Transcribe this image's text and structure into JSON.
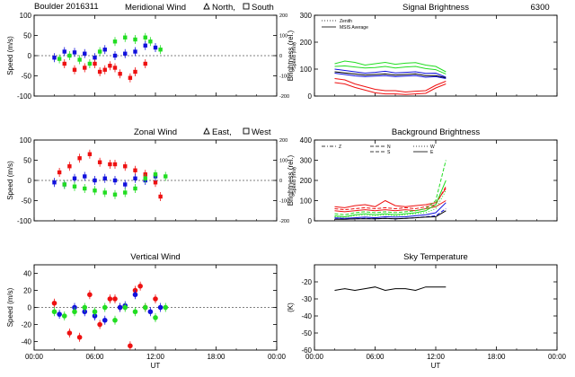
{
  "page": {
    "title": "Boulder  2016311",
    "colors": {
      "red": "#ee1111",
      "green": "#22dd22",
      "blue": "#1111dd",
      "black": "#000000"
    }
  },
  "chart_data": [
    {
      "id": "meridional",
      "type": "scatter",
      "title": "Meridional Wind",
      "title_markers": [
        "North,",
        "South"
      ],
      "ylabel": "Speed (m/s)",
      "y2label": "Speed (m/s)",
      "xlim": [
        0,
        24
      ],
      "ylim": [
        -100,
        100
      ],
      "y2lim": [
        -200,
        200
      ],
      "xticks": [
        0,
        6,
        12,
        18,
        24
      ],
      "xtick_labels": [
        "",
        "",
        "",
        "",
        ""
      ],
      "yticks": [
        100,
        50,
        0,
        -50,
        -100
      ],
      "y2ticks": [
        200,
        100,
        0,
        -100,
        -200
      ],
      "series": [
        {
          "color": "green",
          "marker": "square",
          "x": [
            2.5,
            3.5,
            4.5,
            5.5,
            6.5,
            8.0,
            9.0,
            10.0,
            11.0,
            11.5,
            12.5
          ],
          "y": [
            -8,
            0,
            -10,
            -20,
            10,
            35,
            45,
            40,
            45,
            35,
            15
          ]
        },
        {
          "color": "blue",
          "marker": "square",
          "x": [
            2.0,
            3.0,
            4.0,
            5.0,
            6.0,
            7.0,
            8.0,
            9.0,
            10.0,
            11.0,
            12.0
          ],
          "y": [
            -5,
            10,
            8,
            5,
            -5,
            15,
            0,
            5,
            10,
            25,
            20
          ]
        },
        {
          "color": "red",
          "marker": "square",
          "x": [
            3.0,
            4.0,
            5.0,
            6.0,
            6.5,
            7.0,
            7.5,
            8.0,
            8.5,
            9.5,
            10.0,
            11.0
          ],
          "y": [
            -20,
            -35,
            -30,
            -20,
            -40,
            -35,
            -25,
            -30,
            -45,
            -55,
            -40,
            -20
          ]
        }
      ]
    },
    {
      "id": "signal",
      "type": "line",
      "title": "Signal Brightness",
      "title_right": "6300",
      "ylabel": "Brightness (rel.)",
      "xlim": [
        0,
        24
      ],
      "ylim": [
        0,
        300
      ],
      "xticks": [
        0,
        6,
        12,
        18,
        24
      ],
      "xtick_labels": [
        "",
        "",
        "",
        "",
        ""
      ],
      "yticks": [
        300,
        200,
        100,
        0
      ],
      "legend": [
        {
          "label": "Zenith",
          "style": "dotted"
        },
        {
          "label": "MSIS Average",
          "style": "solid"
        }
      ],
      "series": [
        {
          "color": "green",
          "style": "solid",
          "x": [
            2,
            3,
            4,
            5,
            6,
            7,
            8,
            9,
            10,
            11,
            12,
            13
          ],
          "y": [
            120,
            130,
            125,
            115,
            120,
            125,
            118,
            122,
            124,
            115,
            110,
            90
          ]
        },
        {
          "color": "green",
          "style": "solid",
          "x": [
            2,
            3,
            4,
            5,
            6,
            7,
            8,
            9,
            10,
            11,
            12,
            13
          ],
          "y": [
            110,
            112,
            108,
            104,
            106,
            110,
            104,
            108,
            110,
            102,
            98,
            82
          ]
        },
        {
          "color": "blue",
          "style": "solid",
          "x": [
            2,
            3,
            4,
            5,
            6,
            7,
            8,
            9,
            10,
            11,
            12,
            13
          ],
          "y": [
            100,
            95,
            90,
            85,
            88,
            92,
            86,
            88,
            90,
            84,
            85,
            70
          ]
        },
        {
          "color": "black",
          "style": "solid",
          "x": [
            2,
            3,
            4,
            5,
            6,
            7,
            8,
            9,
            10,
            11,
            12,
            13
          ],
          "y": [
            90,
            86,
            82,
            78,
            80,
            82,
            78,
            80,
            82,
            76,
            76,
            68
          ]
        },
        {
          "color": "blue",
          "style": "solid",
          "x": [
            2,
            3,
            4,
            5,
            6,
            7,
            8,
            9,
            10,
            11,
            12,
            13
          ],
          "y": [
            85,
            80,
            75,
            72,
            74,
            76,
            72,
            74,
            76,
            70,
            72,
            65
          ]
        },
        {
          "color": "red",
          "style": "solid",
          "x": [
            2,
            3,
            4,
            5,
            6,
            7,
            8,
            9,
            10,
            11,
            12,
            13
          ],
          "y": [
            65,
            60,
            45,
            35,
            25,
            20,
            20,
            15,
            18,
            20,
            40,
            55
          ]
        },
        {
          "color": "red",
          "style": "solid",
          "x": [
            2,
            3,
            4,
            5,
            6,
            7,
            8,
            9,
            10,
            11,
            12,
            13
          ],
          "y": [
            50,
            45,
            32,
            22,
            12,
            8,
            8,
            6,
            8,
            10,
            30,
            45
          ]
        }
      ]
    },
    {
      "id": "zonal",
      "type": "scatter",
      "title": "Zonal Wind",
      "title_markers": [
        "East,",
        "West"
      ],
      "ylabel": "Speed (m/s)",
      "y2label": "Speed (m/s)",
      "xlim": [
        0,
        24
      ],
      "ylim": [
        -100,
        100
      ],
      "y2lim": [
        -200,
        200
      ],
      "xticks": [
        0,
        6,
        12,
        18,
        24
      ],
      "xtick_labels": [
        "",
        "",
        "",
        "",
        ""
      ],
      "yticks": [
        100,
        50,
        0,
        -50,
        -100
      ],
      "y2ticks": [
        200,
        100,
        0,
        -100,
        -200
      ],
      "series": [
        {
          "color": "red",
          "marker": "square",
          "x": [
            2.5,
            3.5,
            4.5,
            5.5,
            6.5,
            7.5,
            8.0,
            9.0,
            10.0,
            11.0,
            12.0
          ],
          "y": [
            20,
            35,
            55,
            65,
            45,
            40,
            40,
            35,
            25,
            15,
            -5
          ]
        },
        {
          "color": "red",
          "marker": "square",
          "x": [
            12.5
          ],
          "y": [
            -40
          ]
        },
        {
          "color": "blue",
          "marker": "square",
          "x": [
            2.0,
            3.0,
            4.0,
            5.0,
            6.0,
            7.0,
            8.0,
            9.0,
            10.0,
            11.0,
            12.0
          ],
          "y": [
            -5,
            -10,
            5,
            10,
            0,
            5,
            0,
            -10,
            5,
            0,
            10
          ]
        },
        {
          "color": "green",
          "marker": "square",
          "x": [
            3.0,
            4.0,
            5.0,
            6.0,
            7.0,
            8.0,
            9.0,
            10.0,
            11.0,
            12.0,
            13.0
          ],
          "y": [
            -10,
            -15,
            -20,
            -25,
            -30,
            -35,
            -30,
            -20,
            5,
            15,
            10
          ]
        }
      ]
    },
    {
      "id": "background",
      "type": "line",
      "title": "Background Brightness",
      "ylabel": "Brightness (rel.)",
      "xlim": [
        0,
        24
      ],
      "ylim": [
        0,
        400
      ],
      "xticks": [
        0,
        6,
        12,
        18,
        24
      ],
      "xtick_labels": [
        "",
        "",
        "",
        "",
        ""
      ],
      "yticks": [
        400,
        300,
        200,
        100,
        0
      ],
      "legend": [
        {
          "label": "Z",
          "style": "dashdot"
        },
        {
          "label": "N",
          "style": "dashed"
        },
        {
          "label": "S",
          "style": "dashed"
        },
        {
          "label": "W",
          "style": "dotted"
        },
        {
          "label": "E",
          "style": "solid"
        }
      ],
      "series": [
        {
          "color": "red",
          "style": "solid",
          "x": [
            2,
            3,
            4,
            5,
            6,
            7,
            8,
            9,
            10,
            11,
            12,
            13
          ],
          "y": [
            70,
            65,
            75,
            80,
            70,
            100,
            75,
            70,
            75,
            80,
            90,
            160
          ]
        },
        {
          "color": "red",
          "style": "dashed",
          "x": [
            2,
            3,
            4,
            5,
            6,
            7,
            8,
            9,
            10,
            11,
            12,
            13
          ],
          "y": [
            60,
            55,
            60,
            65,
            60,
            65,
            60,
            65,
            60,
            70,
            80,
            170
          ]
        },
        {
          "color": "red",
          "style": "solid",
          "x": [
            2,
            3,
            4,
            5,
            6,
            7,
            8,
            9,
            10,
            11,
            12,
            13
          ],
          "y": [
            50,
            45,
            50,
            55,
            50,
            55,
            50,
            55,
            50,
            60,
            70,
            100
          ]
        },
        {
          "color": "green",
          "style": "dashed",
          "x": [
            2,
            3,
            4,
            5,
            6,
            7,
            8,
            9,
            10,
            11,
            12,
            13
          ],
          "y": [
            35,
            30,
            40,
            45,
            40,
            45,
            40,
            45,
            50,
            60,
            100,
            300
          ]
        },
        {
          "color": "green",
          "style": "solid",
          "x": [
            2,
            3,
            4,
            5,
            6,
            7,
            8,
            9,
            10,
            11,
            12,
            13
          ],
          "y": [
            25,
            20,
            30,
            35,
            30,
            35,
            30,
            35,
            40,
            50,
            80,
            200
          ]
        },
        {
          "color": "green",
          "style": "dotted",
          "x": [
            2,
            3,
            4,
            5,
            6,
            7,
            8,
            9,
            10,
            11,
            12,
            13
          ],
          "y": [
            20,
            18,
            25,
            28,
            25,
            30,
            25,
            30,
            35,
            40,
            60,
            150
          ]
        },
        {
          "color": "blue",
          "style": "solid",
          "x": [
            2,
            3,
            4,
            5,
            6,
            7,
            8,
            9,
            10,
            11,
            12,
            13
          ],
          "y": [
            15,
            12,
            15,
            18,
            15,
            20,
            18,
            20,
            25,
            30,
            40,
            90
          ]
        },
        {
          "color": "blue",
          "style": "dashed",
          "x": [
            2,
            3,
            4,
            5,
            6,
            7,
            8,
            9,
            10,
            11,
            12,
            13
          ],
          "y": [
            10,
            8,
            10,
            12,
            10,
            12,
            10,
            12,
            15,
            20,
            25,
            60
          ]
        },
        {
          "color": "black",
          "style": "solid",
          "x": [
            2,
            3,
            4,
            5,
            6,
            7,
            8,
            9,
            10,
            11,
            12,
            13
          ],
          "y": [
            8,
            8,
            10,
            10,
            10,
            12,
            10,
            12,
            15,
            18,
            20,
            50
          ]
        }
      ]
    },
    {
      "id": "vertical",
      "type": "scatter",
      "title": "Vertical Wind",
      "ylabel": "Speed (m/s)",
      "xlabel": "UT",
      "xlim": [
        0,
        24
      ],
      "ylim": [
        -50,
        50
      ],
      "xticks": [
        0,
        6,
        12,
        18,
        24
      ],
      "xtick_labels": [
        "00:00",
        "06:00",
        "12:00",
        "18:00",
        "00:00"
      ],
      "yticks": [
        40,
        20,
        0,
        -20,
        -40
      ],
      "series": [
        {
          "color": "red",
          "marker": "circle",
          "x": [
            2.0,
            3.5,
            4.5,
            5.5,
            6.5,
            7.5,
            8.0,
            8.5,
            9.5,
            10.0,
            10.5,
            11.0,
            12.0
          ],
          "y": [
            5,
            -30,
            -35,
            15,
            -20,
            10,
            10,
            0,
            -45,
            20,
            25,
            0,
            10
          ]
        },
        {
          "color": "blue",
          "marker": "circle",
          "x": [
            2.5,
            4.0,
            5.0,
            6.0,
            7.0,
            8.5,
            9.0,
            10.0,
            11.5,
            12.5
          ],
          "y": [
            -8,
            0,
            -5,
            -10,
            -15,
            0,
            2,
            15,
            -5,
            0
          ]
        },
        {
          "color": "green",
          "marker": "circle",
          "x": [
            2.0,
            3.0,
            4.0,
            5.0,
            6.0,
            7.0,
            8.0,
            9.0,
            10.0,
            11.0,
            12.0,
            13.0
          ],
          "y": [
            -5,
            -10,
            -5,
            0,
            -5,
            0,
            -15,
            0,
            -5,
            0,
            -12,
            0
          ]
        }
      ]
    },
    {
      "id": "sky",
      "type": "line",
      "title": "Sky Temperature",
      "ylabel": "(K)",
      "xlabel": "UT",
      "xlim": [
        0,
        24
      ],
      "ylim": [
        -60,
        -10
      ],
      "xticks": [
        0,
        6,
        12,
        18,
        24
      ],
      "xtick_labels": [
        "00:00",
        "06:00",
        "12:00",
        "18:00",
        "00:00"
      ],
      "yticks": [
        -20,
        -30,
        -40,
        -50,
        -60
      ],
      "series": [
        {
          "color": "black",
          "style": "solid",
          "x": [
            2,
            3,
            4,
            5,
            6,
            7,
            8,
            9,
            10,
            11,
            12,
            13
          ],
          "y": [
            -25,
            -24,
            -25,
            -24,
            -23,
            -25,
            -24,
            -24,
            -25,
            -23,
            -23,
            -23
          ]
        }
      ]
    }
  ]
}
